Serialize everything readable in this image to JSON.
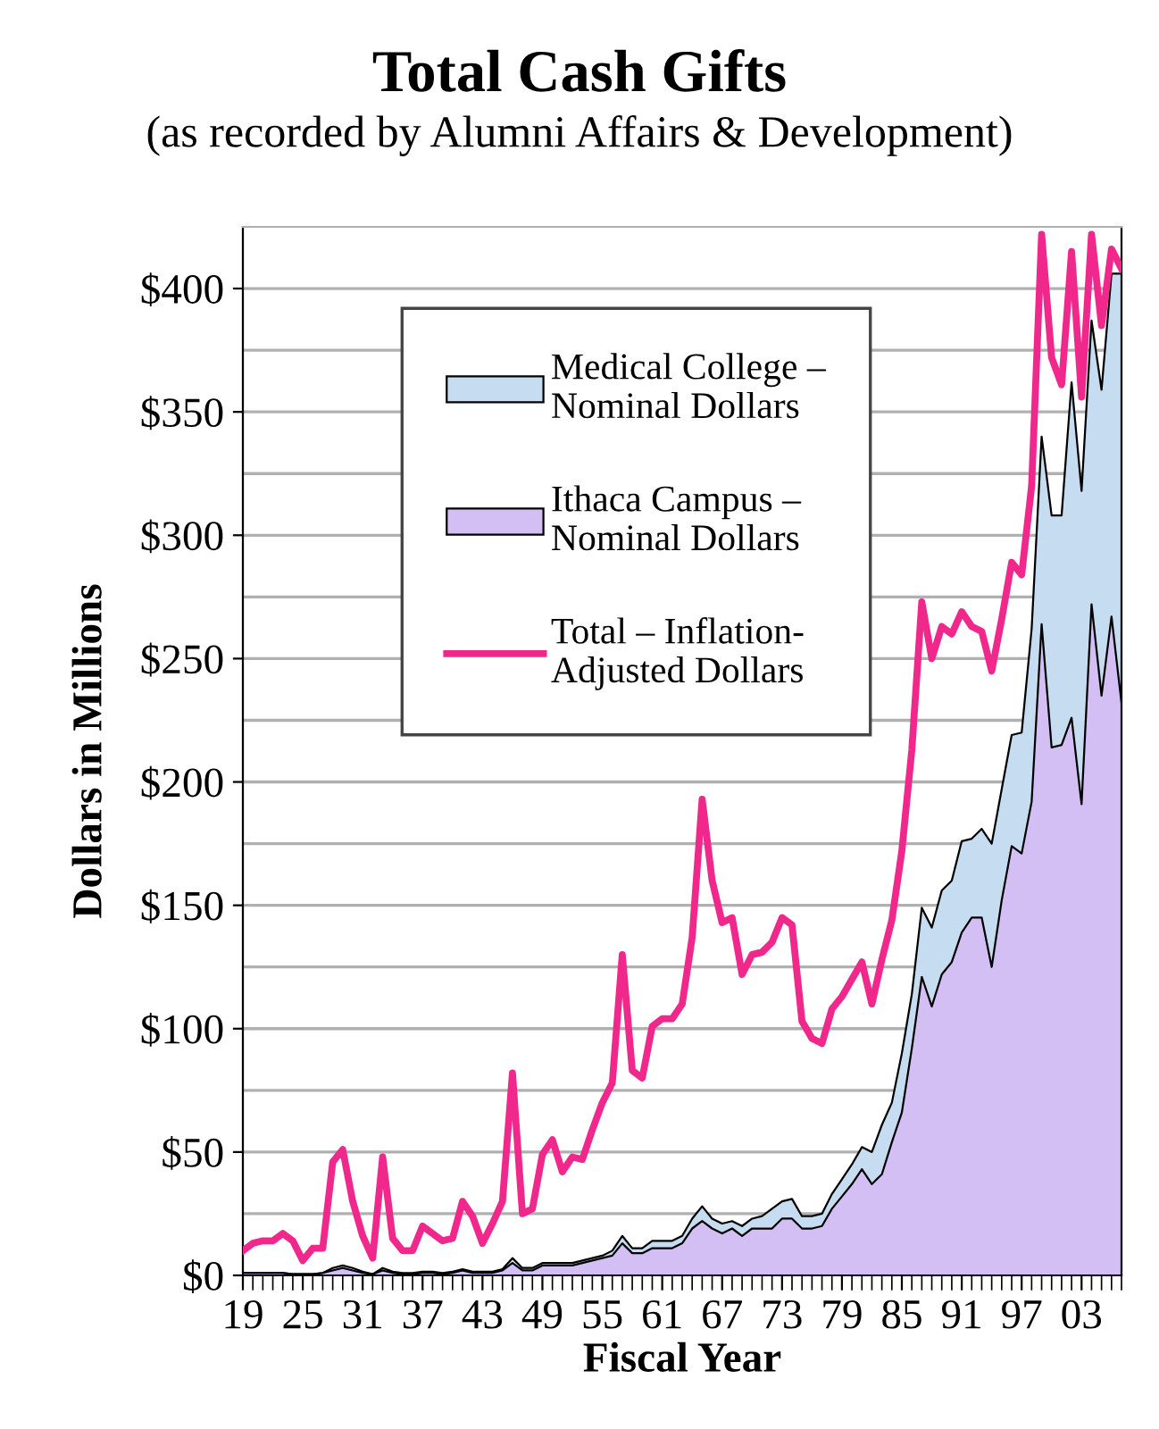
{
  "chart_data": {
    "type": "area",
    "stacked": true,
    "title": "Total Cash Gifts",
    "subtitle": "(as recorded by Alumni Affairs & Development)",
    "xlabel": "Fiscal Year",
    "ylabel": "Dollars in Millions",
    "x": [
      1919,
      1920,
      1921,
      1922,
      1923,
      1924,
      1925,
      1926,
      1927,
      1928,
      1929,
      1930,
      1931,
      1932,
      1933,
      1934,
      1935,
      1936,
      1937,
      1938,
      1939,
      1940,
      1941,
      1942,
      1943,
      1944,
      1945,
      1946,
      1947,
      1948,
      1949,
      1950,
      1951,
      1952,
      1953,
      1954,
      1955,
      1956,
      1957,
      1958,
      1959,
      1960,
      1961,
      1962,
      1963,
      1964,
      1965,
      1966,
      1967,
      1968,
      1969,
      1970,
      1971,
      1972,
      1973,
      1974,
      1975,
      1976,
      1977,
      1978,
      1979,
      1980,
      1981,
      1982,
      1983,
      1984,
      1985,
      1986,
      1987,
      1988,
      1989,
      1990,
      1991,
      1992,
      1993,
      1994,
      1995,
      1996,
      1997,
      1998,
      1999,
      2000,
      2001,
      2002,
      2003,
      2004,
      2005,
      2006,
      2007
    ],
    "series": [
      {
        "name": "Ithaca Campus –\nNominal Dollars",
        "color": "#d4bff5",
        "values": [
          1,
          1,
          1,
          1,
          1,
          0.5,
          0.5,
          0.5,
          1,
          2,
          3,
          2,
          1,
          0.5,
          2,
          1,
          0.5,
          0.5,
          1,
          1,
          0.5,
          1,
          2,
          1,
          1,
          1,
          2,
          5,
          2,
          2,
          4,
          4,
          4,
          4,
          5,
          6,
          7,
          8,
          13,
          9,
          9,
          11,
          11,
          11,
          13,
          19,
          22,
          19,
          17,
          19,
          16,
          19,
          19,
          19,
          23,
          23,
          19,
          19,
          20,
          27,
          32,
          37,
          43,
          37,
          41,
          54,
          66,
          92,
          121,
          109,
          122,
          127,
          139,
          145,
          145,
          125,
          152,
          174,
          171,
          192,
          264,
          214,
          215,
          226,
          191,
          272,
          235,
          267,
          232
        ]
      },
      {
        "name": "Medical College –\nNominal Dollars",
        "color": "#c6dcf0",
        "values": [
          0,
          0,
          0,
          0,
          0,
          0,
          0,
          0,
          0,
          1,
          1,
          1,
          0.5,
          0,
          1,
          0.5,
          0.5,
          0.5,
          0.5,
          0.5,
          0.5,
          0.5,
          0.5,
          0.5,
          0.5,
          0.5,
          0.5,
          2,
          1,
          1,
          1,
          1,
          1,
          1,
          1,
          1,
          1,
          2,
          3,
          2,
          2,
          3,
          3,
          3,
          3,
          4,
          6,
          4,
          4,
          3,
          4,
          4,
          5,
          8,
          7,
          8,
          5,
          5,
          5,
          6,
          7,
          8,
          9,
          13,
          20,
          16,
          24,
          22,
          28,
          32,
          34,
          33,
          37,
          32,
          36,
          50,
          45,
          45,
          49,
          70,
          76,
          94,
          93,
          136,
          127,
          115,
          124,
          139,
          174
        ]
      },
      {
        "name": "Total – Inflation-\nAdjusted Dollars",
        "type": "line",
        "color": "#f0288c",
        "values": [
          10,
          13,
          14,
          14,
          17,
          14,
          6,
          11,
          11,
          46,
          51,
          30,
          16,
          7,
          48,
          15,
          10,
          10,
          20,
          17,
          14,
          15,
          30,
          24,
          13,
          21,
          30,
          82,
          25,
          27,
          49,
          55,
          42,
          48,
          47,
          59,
          70,
          78,
          130,
          83,
          80,
          101,
          104,
          104,
          110,
          137,
          193,
          160,
          143,
          145,
          122,
          130,
          131,
          135,
          145,
          142,
          103,
          96,
          94,
          108,
          113,
          120,
          127,
          110,
          128,
          144,
          172,
          213,
          273,
          250,
          263,
          260,
          269,
          263,
          261,
          245,
          266,
          289,
          284,
          320,
          422,
          372,
          361,
          415,
          356,
          422,
          385,
          416,
          408
        ]
      }
    ],
    "xlim": [
      1919,
      2007
    ],
    "xticks": [
      {
        "value": 1919,
        "label": "19"
      },
      {
        "value": 1920,
        "label": null
      },
      {
        "value": 1921,
        "label": null
      },
      {
        "value": 1922,
        "label": null
      },
      {
        "value": 1923,
        "label": null
      },
      {
        "value": 1924,
        "label": null
      },
      {
        "value": 1925,
        "label": "25"
      },
      {
        "value": 1926,
        "label": null
      },
      {
        "value": 1927,
        "label": null
      },
      {
        "value": 1928,
        "label": null
      },
      {
        "value": 1929,
        "label": null
      },
      {
        "value": 1930,
        "label": null
      },
      {
        "value": 1931,
        "label": "31"
      },
      {
        "value": 1932,
        "label": null
      },
      {
        "value": 1933,
        "label": null
      },
      {
        "value": 1934,
        "label": null
      },
      {
        "value": 1935,
        "label": null
      },
      {
        "value": 1936,
        "label": null
      },
      {
        "value": 1937,
        "label": "37"
      },
      {
        "value": 1938,
        "label": null
      },
      {
        "value": 1939,
        "label": null
      },
      {
        "value": 1940,
        "label": null
      },
      {
        "value": 1941,
        "label": null
      },
      {
        "value": 1942,
        "label": null
      },
      {
        "value": 1943,
        "label": "43"
      },
      {
        "value": 1944,
        "label": null
      },
      {
        "value": 1945,
        "label": null
      },
      {
        "value": 1946,
        "label": null
      },
      {
        "value": 1947,
        "label": null
      },
      {
        "value": 1948,
        "label": null
      },
      {
        "value": 1949,
        "label": "49"
      },
      {
        "value": 1950,
        "label": null
      },
      {
        "value": 1951,
        "label": null
      },
      {
        "value": 1952,
        "label": null
      },
      {
        "value": 1953,
        "label": null
      },
      {
        "value": 1954,
        "label": null
      },
      {
        "value": 1955,
        "label": "55"
      },
      {
        "value": 1956,
        "label": null
      },
      {
        "value": 1957,
        "label": null
      },
      {
        "value": 1958,
        "label": null
      },
      {
        "value": 1959,
        "label": null
      },
      {
        "value": 1960,
        "label": null
      },
      {
        "value": 1961,
        "label": "61"
      },
      {
        "value": 1962,
        "label": null
      },
      {
        "value": 1963,
        "label": null
      },
      {
        "value": 1964,
        "label": null
      },
      {
        "value": 1965,
        "label": null
      },
      {
        "value": 1966,
        "label": null
      },
      {
        "value": 1967,
        "label": "67"
      },
      {
        "value": 1968,
        "label": null
      },
      {
        "value": 1969,
        "label": null
      },
      {
        "value": 1970,
        "label": null
      },
      {
        "value": 1971,
        "label": null
      },
      {
        "value": 1972,
        "label": null
      },
      {
        "value": 1973,
        "label": "73"
      },
      {
        "value": 1974,
        "label": null
      },
      {
        "value": 1975,
        "label": null
      },
      {
        "value": 1976,
        "label": null
      },
      {
        "value": 1977,
        "label": null
      },
      {
        "value": 1978,
        "label": null
      },
      {
        "value": 1979,
        "label": "79"
      },
      {
        "value": 1980,
        "label": null
      },
      {
        "value": 1981,
        "label": null
      },
      {
        "value": 1982,
        "label": null
      },
      {
        "value": 1983,
        "label": null
      },
      {
        "value": 1984,
        "label": null
      },
      {
        "value": 1985,
        "label": "85"
      },
      {
        "value": 1986,
        "label": null
      },
      {
        "value": 1987,
        "label": null
      },
      {
        "value": 1988,
        "label": null
      },
      {
        "value": 1989,
        "label": null
      },
      {
        "value": 1990,
        "label": null
      },
      {
        "value": 1991,
        "label": "91"
      },
      {
        "value": 1992,
        "label": null
      },
      {
        "value": 1993,
        "label": null
      },
      {
        "value": 1994,
        "label": null
      },
      {
        "value": 1995,
        "label": null
      },
      {
        "value": 1996,
        "label": null
      },
      {
        "value": 1997,
        "label": "97"
      },
      {
        "value": 1998,
        "label": null
      },
      {
        "value": 1999,
        "label": null
      },
      {
        "value": 2000,
        "label": null
      },
      {
        "value": 2001,
        "label": null
      },
      {
        "value": 2002,
        "label": null
      },
      {
        "value": 2003,
        "label": "03"
      },
      {
        "value": 2004,
        "label": null
      },
      {
        "value": 2005,
        "label": null
      },
      {
        "value": 2006,
        "label": null
      },
      {
        "value": 2007,
        "label": null
      }
    ],
    "ylim": [
      0,
      425
    ],
    "yticks": [
      {
        "value": 0,
        "label": "$0"
      },
      {
        "value": 25,
        "label": null
      },
      {
        "value": 50,
        "label": "$50"
      },
      {
        "value": 75,
        "label": null
      },
      {
        "value": 100,
        "label": "$100"
      },
      {
        "value": 125,
        "label": null
      },
      {
        "value": 150,
        "label": "$150"
      },
      {
        "value": 175,
        "label": null
      },
      {
        "value": 200,
        "label": "$200"
      },
      {
        "value": 225,
        "label": null
      },
      {
        "value": 250,
        "label": "$250"
      },
      {
        "value": 275,
        "label": null
      },
      {
        "value": 300,
        "label": "$300"
      },
      {
        "value": 325,
        "label": null
      },
      {
        "value": 350,
        "label": "$350"
      },
      {
        "value": 375,
        "label": null
      },
      {
        "value": 400,
        "label": "$400"
      }
    ],
    "grid": "y",
    "legend": "top left"
  }
}
